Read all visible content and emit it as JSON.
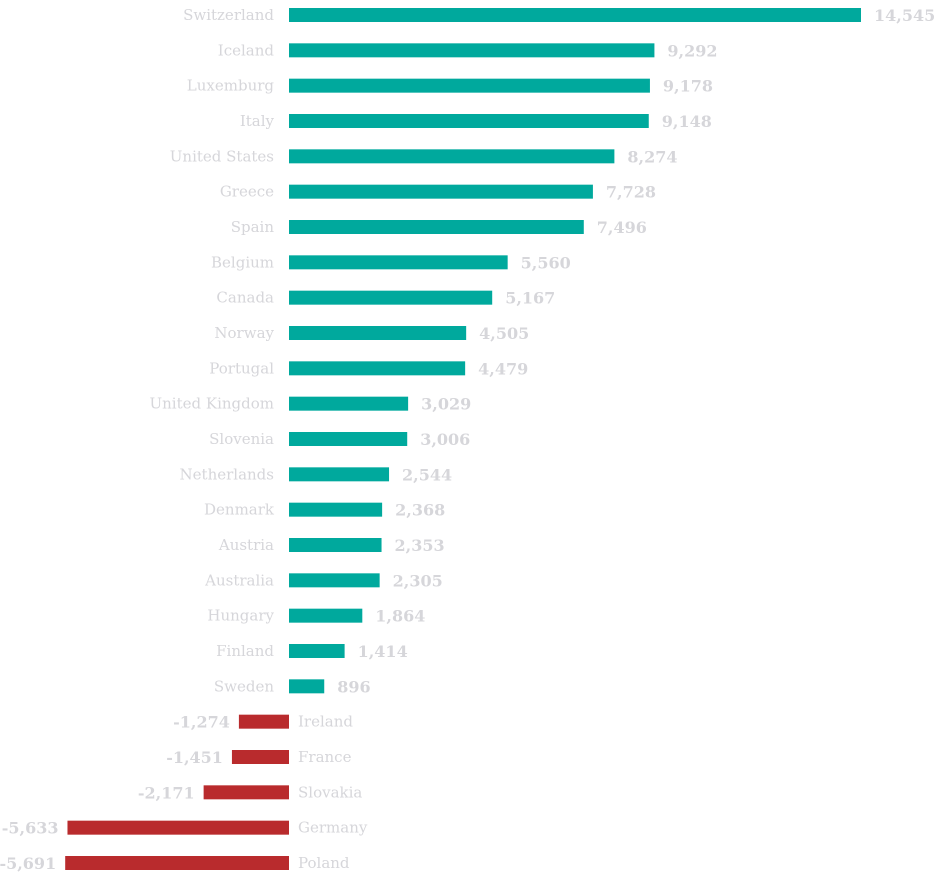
{
  "chart_data": {
    "type": "bar",
    "orientation": "horizontal",
    "title": "",
    "xlabel": "",
    "ylabel": "",
    "categories": [
      "Switzerland",
      "Iceland",
      "Luxemburg",
      "Italy",
      "United States",
      "Greece",
      "Spain",
      "Belgium",
      "Canada",
      "Norway",
      "Portugal",
      "United Kingdom",
      "Slovenia",
      "Netherlands",
      "Denmark",
      "Austria",
      "Australia",
      "Hungary",
      "Finland",
      "Sweden",
      "Ireland",
      "France",
      "Slovakia",
      "Germany",
      "Poland"
    ],
    "values": [
      14545,
      9292,
      9178,
      9148,
      8274,
      7728,
      7496,
      5560,
      5167,
      4505,
      4479,
      3029,
      3006,
      2544,
      2368,
      2353,
      2305,
      1864,
      1414,
      896,
      -1274,
      -1451,
      -2171,
      -5633,
      -5691
    ],
    "value_labels": [
      "14,545",
      "9,292",
      "9,178",
      "9,148",
      "8,274",
      "7,728",
      "7,496",
      "5,560",
      "5,167",
      "4,505",
      "4,479",
      "3,029",
      "3,006",
      "2,544",
      "2,368",
      "2,353",
      "2,305",
      "1,864",
      "1,414",
      "896",
      "-1,274",
      "-1,451",
      "-2,171",
      "-5,633",
      "-5,691"
    ],
    "xlim": [
      -5691,
      14545
    ],
    "grid": false,
    "colors": {
      "positive": "#00a99d",
      "negative": "#b92b2d",
      "label": "#d6d6da"
    }
  }
}
